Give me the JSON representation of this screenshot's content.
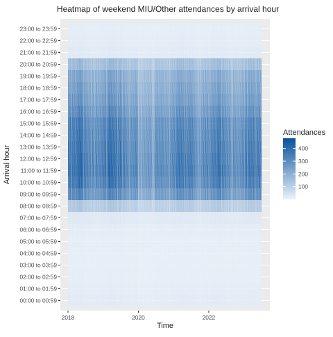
{
  "chart_data": {
    "type": "heatmap",
    "title": "Heatmap of weekend MIU/Other attendances by arrival hour",
    "xlabel": "Time",
    "ylabel": "Arrival hour",
    "x_range": [
      "2018-01",
      "2023-06"
    ],
    "x_ticks": [
      {
        "label": "2018",
        "year": 2018
      },
      {
        "label": "2020",
        "year": 2020
      },
      {
        "label": "2022",
        "year": 2022
      }
    ],
    "y_categories": [
      "00:00 to 00:59",
      "01:00 to 01:59",
      "02:00 to 02:59",
      "03:00 to 03:59",
      "04:00 to 04:59",
      "05:00 to 05:59",
      "06:00 to 06:59",
      "07:00 to 07:59",
      "08:00 to 08:59",
      "09:00 to 09:59",
      "10:00 to 10:59",
      "11:00 to 11:59",
      "12:00 to 12:59",
      "13:00 to 13:59",
      "14:00 to 14:59",
      "15:00 to 15:59",
      "16:00 to 16:59",
      "17:00 to 17:59",
      "18:00 to 18:59",
      "19:00 to 19:59",
      "20:00 to 20:59",
      "21:00 to 21:59",
      "22:00 to 22:59",
      "23:00 to 23:59"
    ],
    "hour_mean_attendances": [
      18,
      14,
      10,
      9,
      8,
      10,
      14,
      25,
      120,
      300,
      350,
      370,
      360,
      350,
      340,
      330,
      290,
      260,
      240,
      220,
      160,
      20,
      15,
      12
    ],
    "value_range": [
      0,
      480
    ],
    "legend": {
      "title": "Attendances",
      "ticks": [
        100,
        200,
        300,
        400
      ],
      "position": "right",
      "low_color": "#eaf2fb",
      "high_color": "#08519c"
    },
    "grid": true
  }
}
